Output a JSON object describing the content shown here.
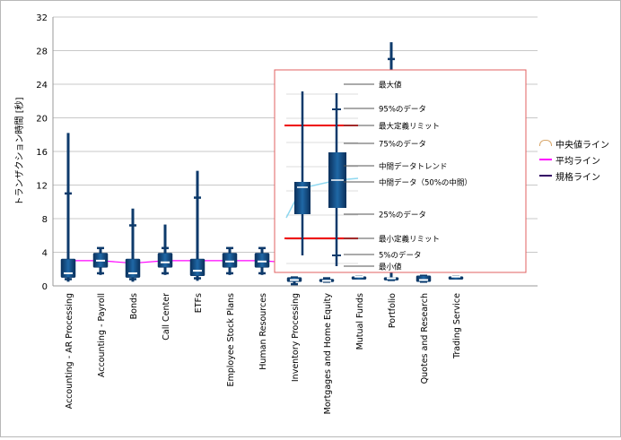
{
  "chart_data": {
    "type": "box",
    "ylabel": "トランザクション時間 [秒]",
    "ylim": [
      0,
      32
    ],
    "yticks": [
      "0",
      "4",
      "8",
      "12",
      "16",
      "20",
      "24",
      "28",
      "32"
    ],
    "grid": true,
    "legend_position": "right",
    "categories": [
      "Accounting - AR Processing",
      "Accounting - Payroll",
      "Bonds",
      "Call Center",
      "ETFs",
      "Employee Stock Plans",
      "Human Resources",
      "Inventory Processing",
      "Mortgages and Home Equity",
      "Mutual Funds",
      "Portfolio",
      "Quotes and Research",
      "Trading Service"
    ],
    "boxes": [
      {
        "min": 0.5,
        "p5": 0.8,
        "q1": 1.0,
        "median": 1.5,
        "q3": 3.2,
        "p95": 11.0,
        "max": 18.2
      },
      {
        "min": 1.3,
        "p5": 1.5,
        "q1": 2.2,
        "median": 3.0,
        "q3": 3.9,
        "p95": 4.5,
        "max": 4.6
      },
      {
        "min": 0.5,
        "p5": 0.8,
        "q1": 1.0,
        "median": 1.5,
        "q3": 3.2,
        "p95": 7.2,
        "max": 9.2
      },
      {
        "min": 1.3,
        "p5": 1.5,
        "q1": 2.2,
        "median": 2.8,
        "q3": 3.9,
        "p95": 4.5,
        "max": 7.3
      },
      {
        "min": 0.6,
        "p5": 0.9,
        "q1": 1.2,
        "median": 1.8,
        "q3": 3.2,
        "p95": 10.5,
        "max": 13.7
      },
      {
        "min": 1.3,
        "p5": 1.5,
        "q1": 2.2,
        "median": 2.9,
        "q3": 3.9,
        "p95": 4.5,
        "max": 4.6
      },
      {
        "min": 1.3,
        "p5": 1.5,
        "q1": 2.2,
        "median": 2.9,
        "q3": 3.9,
        "p95": 4.5,
        "max": 4.6
      },
      {
        "min": 0.1,
        "p5": 0.2,
        "q1": 0.5,
        "median": 0.7,
        "q3": 1.0,
        "p95": 1.0,
        "max": 1.0
      },
      {
        "min": 0.4,
        "p5": 0.5,
        "q1": 0.5,
        "median": 0.6,
        "q3": 0.8,
        "p95": 0.9,
        "max": 1.0
      },
      {
        "min": 1.1,
        "p5": 1.1,
        "q1": 1.1,
        "median": 1.1,
        "q3": 1.1,
        "p95": 1.1,
        "max": 1.1
      },
      {
        "min": 0.6,
        "p5": 0.7,
        "q1": 0.8,
        "median": 0.9,
        "q3": 1.0,
        "p95": 27.0,
        "max": 29.0
      },
      {
        "min": 0.4,
        "p5": 0.5,
        "q1": 0.5,
        "median": 0.7,
        "q3": 1.2,
        "p95": 1.2,
        "max": 1.2
      },
      {
        "min": 1.1,
        "p5": 1.1,
        "q1": 1.1,
        "median": 1.1,
        "q3": 1.1,
        "p95": 1.1,
        "max": 1.1
      }
    ],
    "average_line": [
      3.0,
      3.0,
      2.7,
      3.0,
      3.0,
      3.0,
      3.0,
      2.7,
      2.7,
      2.7,
      2.7,
      2.7,
      2.7
    ],
    "legend": [
      "中央値ライン",
      "平均ライン",
      "規格ライン"
    ],
    "legend_colors": [
      "#d9a86c",
      "#ff00ff",
      "#330066"
    ],
    "box_color": "#0d3a6b",
    "average_color": "#ff00ff"
  },
  "explanation_box": {
    "labels": [
      "最大値",
      "95%のデータ",
      "最大定義リミット",
      "75%のデータ",
      "中間データトレンド",
      "中間データ（50%の中間）",
      "25%のデータ",
      "最小定義リミット",
      "5%のデータ",
      "最小値"
    ],
    "border_color": "#e06060",
    "limit_color": "#ee0000",
    "trend_color": "#8fd8f0"
  }
}
